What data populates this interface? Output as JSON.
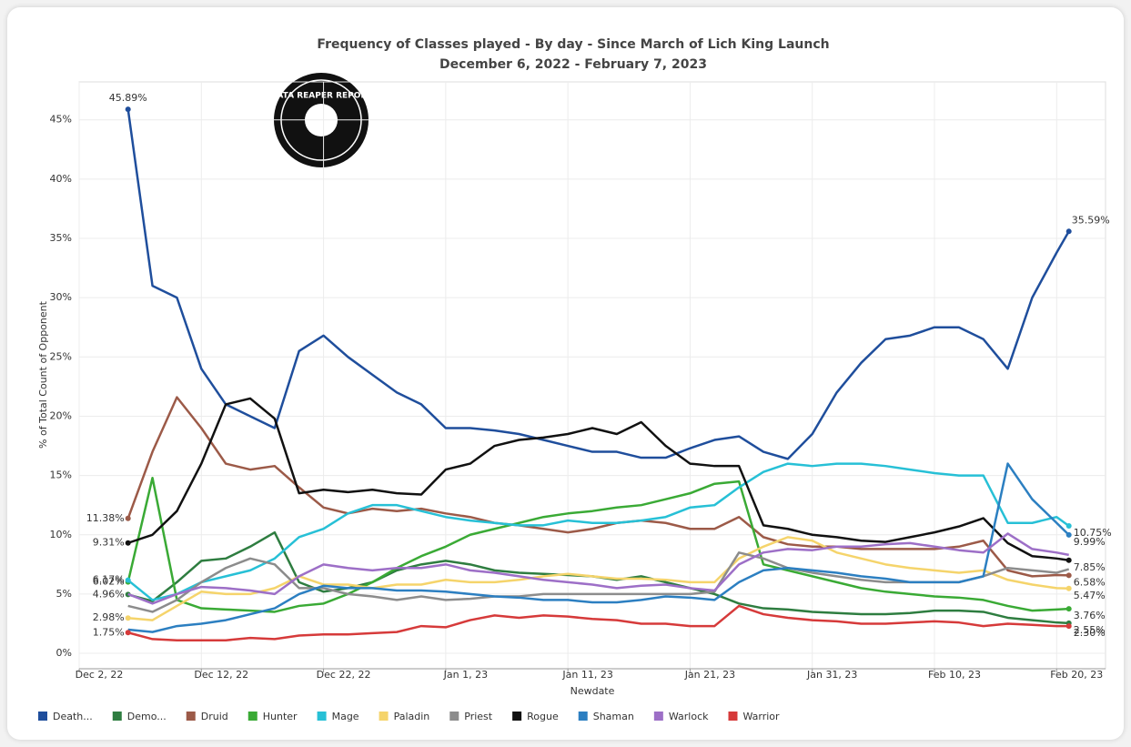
{
  "chart_data": {
    "type": "line",
    "title": "Frequency of Classes played - By day - Since March of Lich King Launch",
    "subtitle": "December 6, 2022 - February 7, 2023",
    "logo": "DATA REAPER REPORT",
    "x_label": "Newdate",
    "y_label": "% of Total Count of Opponent",
    "x": [
      "2022-12-06",
      "2022-12-08",
      "2022-12-10",
      "2022-12-12",
      "2022-12-14",
      "2022-12-16",
      "2022-12-18",
      "2022-12-20",
      "2022-12-22",
      "2022-12-24",
      "2022-12-26",
      "2022-12-28",
      "2022-12-30",
      "2023-01-01",
      "2023-01-03",
      "2023-01-05",
      "2023-01-07",
      "2023-01-09",
      "2023-01-11",
      "2023-01-13",
      "2023-01-15",
      "2023-01-17",
      "2023-01-19",
      "2023-01-21",
      "2023-01-23",
      "2023-01-25",
      "2023-01-27",
      "2023-01-29",
      "2023-01-31",
      "2023-02-02",
      "2023-02-04",
      "2023-02-06",
      "2023-02-08",
      "2023-02-10",
      "2023-02-12",
      "2023-02-14",
      "2023-02-16",
      "2023-02-18",
      "2023-02-20",
      "2023-02-21"
    ],
    "xlim": [
      "2022-12-02",
      "2023-02-24"
    ],
    "xticks": [
      {
        "value": "2022-12-02",
        "label": "Dec 2, 22"
      },
      {
        "value": "2022-12-12",
        "label": "Dec 12, 22"
      },
      {
        "value": "2022-12-22",
        "label": "Dec 22, 22"
      },
      {
        "value": "2023-01-01",
        "label": "Jan 1, 23"
      },
      {
        "value": "2023-01-11",
        "label": "Jan 11, 23"
      },
      {
        "value": "2023-01-21",
        "label": "Jan 21, 23"
      },
      {
        "value": "2023-01-31",
        "label": "Jan 31, 23"
      },
      {
        "value": "2023-02-10",
        "label": "Feb 10, 23"
      },
      {
        "value": "2023-02-20",
        "label": "Feb 20, 23"
      }
    ],
    "ylim": [
      -1.3,
      48.2
    ],
    "yticks": [
      {
        "value": 0,
        "label": "0%"
      },
      {
        "value": 5,
        "label": "5%"
      },
      {
        "value": 10,
        "label": "10%"
      },
      {
        "value": 15,
        "label": "15%"
      },
      {
        "value": 20,
        "label": "20%"
      },
      {
        "value": 25,
        "label": "25%"
      },
      {
        "value": 30,
        "label": "30%"
      },
      {
        "value": 35,
        "label": "35%"
      },
      {
        "value": 40,
        "label": "40%"
      },
      {
        "value": 45,
        "label": "45%"
      }
    ],
    "grid": true,
    "series": [
      {
        "name": "Death...",
        "color": "#1f4e9c",
        "values": [
          45.89,
          31,
          30,
          24,
          21,
          20,
          19,
          25.5,
          26.8,
          25,
          23.5,
          22,
          21,
          19,
          19,
          18.8,
          18.5,
          18,
          17.5,
          17,
          17,
          16.5,
          16.5,
          17.3,
          18,
          18.3,
          17,
          16.4,
          18.5,
          22,
          24.5,
          26.5,
          26.8,
          27.5,
          27.5,
          26.5,
          24,
          30,
          33.8,
          35.59
        ],
        "value_labels": [
          "45.89%",
          null,
          null,
          null,
          null,
          null,
          null,
          null,
          null,
          null,
          null,
          null,
          null,
          null,
          null,
          null,
          null,
          null,
          null,
          null,
          null,
          null,
          null,
          null,
          null,
          null,
          null,
          null,
          null,
          null,
          null,
          null,
          null,
          null,
          null,
          null,
          null,
          null,
          null,
          "35.59%"
        ]
      },
      {
        "name": "Demo...",
        "color": "#2e7d40",
        "values": [
          4.96,
          4.4,
          6,
          7.8,
          8,
          9,
          10.2,
          6,
          5.2,
          5.5,
          6,
          7,
          7.5,
          7.8,
          7.5,
          7,
          6.8,
          6.7,
          6.6,
          6.5,
          6.2,
          6.5,
          6,
          5.5,
          5,
          4.2,
          3.8,
          3.7,
          3.5,
          3.4,
          3.3,
          3.3,
          3.4,
          3.6,
          3.6,
          3.5,
          3,
          2.8,
          2.6,
          2.55
        ],
        "value_labels": [
          "4.96%",
          null,
          null,
          null,
          null,
          null,
          null,
          null,
          null,
          null,
          null,
          null,
          null,
          null,
          null,
          null,
          null,
          null,
          null,
          null,
          null,
          null,
          null,
          null,
          null,
          null,
          null,
          null,
          null,
          null,
          null,
          null,
          null,
          null,
          null,
          null,
          null,
          null,
          null,
          "2.55%"
        ]
      },
      {
        "name": "Druid",
        "color": "#9c5a48",
        "values": [
          11.38,
          17,
          21.6,
          19,
          16,
          15.5,
          15.8,
          14,
          12.3,
          11.8,
          12.2,
          12,
          12.2,
          11.8,
          11.5,
          11,
          10.8,
          10.5,
          10.2,
          10.5,
          11,
          11.2,
          11,
          10.5,
          10.5,
          11.5,
          9.8,
          9.2,
          9,
          9,
          8.8,
          8.8,
          8.8,
          8.8,
          9,
          9.5,
          7,
          6.5,
          6.6,
          6.58
        ],
        "value_labels": [
          "11.38%",
          null,
          null,
          null,
          null,
          null,
          null,
          null,
          null,
          null,
          null,
          null,
          null,
          null,
          null,
          null,
          null,
          null,
          null,
          null,
          null,
          null,
          null,
          null,
          null,
          null,
          null,
          null,
          null,
          null,
          null,
          null,
          null,
          null,
          null,
          null,
          null,
          null,
          null,
          "6.58%"
        ]
      },
      {
        "name": "Hunter",
        "color": "#3aaa35",
        "values": [
          6.02,
          14.8,
          4.5,
          3.8,
          3.7,
          3.6,
          3.5,
          4,
          4.2,
          5,
          6,
          7.2,
          8.2,
          9,
          10,
          10.5,
          11,
          11.5,
          11.8,
          12,
          12.3,
          12.5,
          13,
          13.5,
          14.3,
          14.5,
          7.5,
          7,
          6.5,
          6,
          5.5,
          5.2,
          5,
          4.8,
          4.7,
          4.5,
          4,
          3.6,
          3.7,
          3.76
        ],
        "value_labels": [
          "6.02%",
          null,
          null,
          null,
          null,
          null,
          null,
          null,
          null,
          null,
          null,
          null,
          null,
          null,
          null,
          null,
          null,
          null,
          null,
          null,
          null,
          null,
          null,
          null,
          null,
          null,
          null,
          null,
          null,
          null,
          null,
          null,
          null,
          null,
          null,
          null,
          null,
          null,
          null,
          "3.76%"
        ]
      },
      {
        "name": "Mage",
        "color": "#27c0d6",
        "values": [
          6.17,
          4.5,
          5,
          6,
          6.5,
          7,
          8,
          9.8,
          10.5,
          11.8,
          12.5,
          12.5,
          12,
          11.5,
          11.2,
          11,
          10.8,
          10.8,
          11.2,
          11,
          11,
          11.2,
          11.5,
          12.3,
          12.5,
          14,
          15.3,
          16,
          15.8,
          16,
          16,
          15.8,
          15.5,
          15.2,
          15,
          15,
          11,
          11,
          11.5,
          10.75
        ],
        "value_labels": [
          "6.17%",
          null,
          null,
          null,
          null,
          null,
          null,
          null,
          null,
          null,
          null,
          null,
          null,
          null,
          null,
          null,
          null,
          null,
          null,
          null,
          null,
          null,
          null,
          null,
          null,
          null,
          null,
          null,
          null,
          null,
          null,
          null,
          null,
          null,
          null,
          null,
          null,
          null,
          null,
          "10.75%"
        ]
      },
      {
        "name": "Paladin",
        "color": "#f5d46b",
        "values": [
          2.98,
          2.8,
          4,
          5.2,
          5,
          5,
          5.5,
          6.5,
          5.8,
          5.8,
          5.5,
          5.8,
          5.8,
          6.2,
          6,
          6,
          6.2,
          6.5,
          6.7,
          6.5,
          6.3,
          6.3,
          6.2,
          6,
          6,
          8,
          9,
          9.8,
          9.5,
          8.5,
          8,
          7.5,
          7.2,
          7,
          6.8,
          7,
          6.2,
          5.8,
          5.5,
          5.47
        ],
        "value_labels": [
          "2.98%",
          null,
          null,
          null,
          null,
          null,
          null,
          null,
          null,
          null,
          null,
          null,
          null,
          null,
          null,
          null,
          null,
          null,
          null,
          null,
          null,
          null,
          null,
          null,
          null,
          null,
          null,
          null,
          null,
          null,
          null,
          null,
          null,
          null,
          null,
          null,
          null,
          null,
          null,
          "5.47%"
        ]
      },
      {
        "name": "Priest",
        "color": "#8c8c8c",
        "values": [
          4,
          3.5,
          4.5,
          6,
          7.2,
          8,
          7.5,
          5.5,
          5.5,
          5,
          4.8,
          4.5,
          4.8,
          4.5,
          4.6,
          4.8,
          4.8,
          5,
          5,
          5,
          5,
          5,
          5,
          5,
          5.2,
          8.5,
          8,
          7.2,
          6.8,
          6.5,
          6.2,
          6,
          6,
          6,
          6,
          6.5,
          7.2,
          7,
          6.8,
          7.1
        ]
      },
      {
        "name": "Rogue",
        "color": "#111111",
        "values": [
          9.31,
          10,
          12,
          16,
          21,
          21.5,
          19.8,
          13.5,
          13.8,
          13.6,
          13.8,
          13.5,
          13.4,
          15.5,
          16,
          17.5,
          18,
          18.2,
          18.5,
          19,
          18.5,
          19.5,
          17.5,
          16,
          15.8,
          15.8,
          10.8,
          10.5,
          10,
          9.8,
          9.5,
          9.4,
          9.8,
          10.2,
          10.7,
          11.4,
          9.3,
          8.2,
          8,
          7.85
        ],
        "value_labels": [
          "9.31%",
          null,
          null,
          null,
          null,
          null,
          null,
          null,
          null,
          null,
          null,
          null,
          null,
          null,
          null,
          null,
          null,
          null,
          null,
          null,
          null,
          null,
          null,
          null,
          null,
          null,
          null,
          null,
          null,
          null,
          null,
          null,
          null,
          null,
          null,
          null,
          null,
          null,
          null,
          "7.85%"
        ]
      },
      {
        "name": "Shaman",
        "color": "#2c7fc1",
        "values": [
          2,
          1.8,
          2.3,
          2.5,
          2.8,
          3.3,
          3.8,
          5,
          5.7,
          5.5,
          5.5,
          5.3,
          5.3,
          5.2,
          5,
          4.8,
          4.7,
          4.5,
          4.5,
          4.3,
          4.3,
          4.5,
          4.8,
          4.7,
          4.5,
          6,
          7,
          7.2,
          7,
          6.8,
          6.5,
          6.3,
          6,
          6,
          6,
          6.5,
          16,
          13,
          11,
          9.99
        ],
        "value_labels": [
          null,
          null,
          null,
          null,
          null,
          null,
          null,
          null,
          null,
          null,
          null,
          null,
          null,
          null,
          null,
          null,
          null,
          null,
          null,
          null,
          null,
          null,
          null,
          null,
          null,
          null,
          null,
          null,
          null,
          null,
          null,
          null,
          null,
          null,
          null,
          null,
          null,
          null,
          null,
          "9.99%"
        ]
      },
      {
        "name": "Warlock",
        "color": "#9d6fc7",
        "values": [
          5,
          4.2,
          5,
          5.6,
          5.5,
          5.3,
          5,
          6.5,
          7.5,
          7.2,
          7,
          7.2,
          7.2,
          7.5,
          7,
          6.8,
          6.5,
          6.2,
          6,
          5.8,
          5.5,
          5.7,
          5.8,
          5.5,
          5.3,
          7.5,
          8.5,
          8.8,
          8.7,
          9,
          9,
          9.2,
          9.3,
          9,
          8.7,
          8.5,
          10.1,
          8.8,
          8.5,
          8.3
        ]
      },
      {
        "name": "Warrior",
        "color": "#d63a3a",
        "values": [
          1.75,
          1.2,
          1.1,
          1.1,
          1.1,
          1.3,
          1.2,
          1.5,
          1.6,
          1.6,
          1.7,
          1.8,
          2.3,
          2.2,
          2.8,
          3.2,
          3,
          3.2,
          3.1,
          2.9,
          2.8,
          2.5,
          2.5,
          2.3,
          2.3,
          4,
          3.3,
          3,
          2.8,
          2.7,
          2.5,
          2.5,
          2.6,
          2.7,
          2.6,
          2.3,
          2.5,
          2.4,
          2.3,
          2.3
        ],
        "value_labels": [
          "1.75%",
          null,
          null,
          null,
          null,
          null,
          null,
          null,
          null,
          null,
          null,
          null,
          null,
          null,
          null,
          null,
          null,
          null,
          null,
          null,
          null,
          null,
          null,
          null,
          null,
          null,
          null,
          null,
          null,
          null,
          null,
          null,
          null,
          null,
          null,
          null,
          null,
          null,
          null,
          "2.30%"
        ]
      }
    ]
  }
}
